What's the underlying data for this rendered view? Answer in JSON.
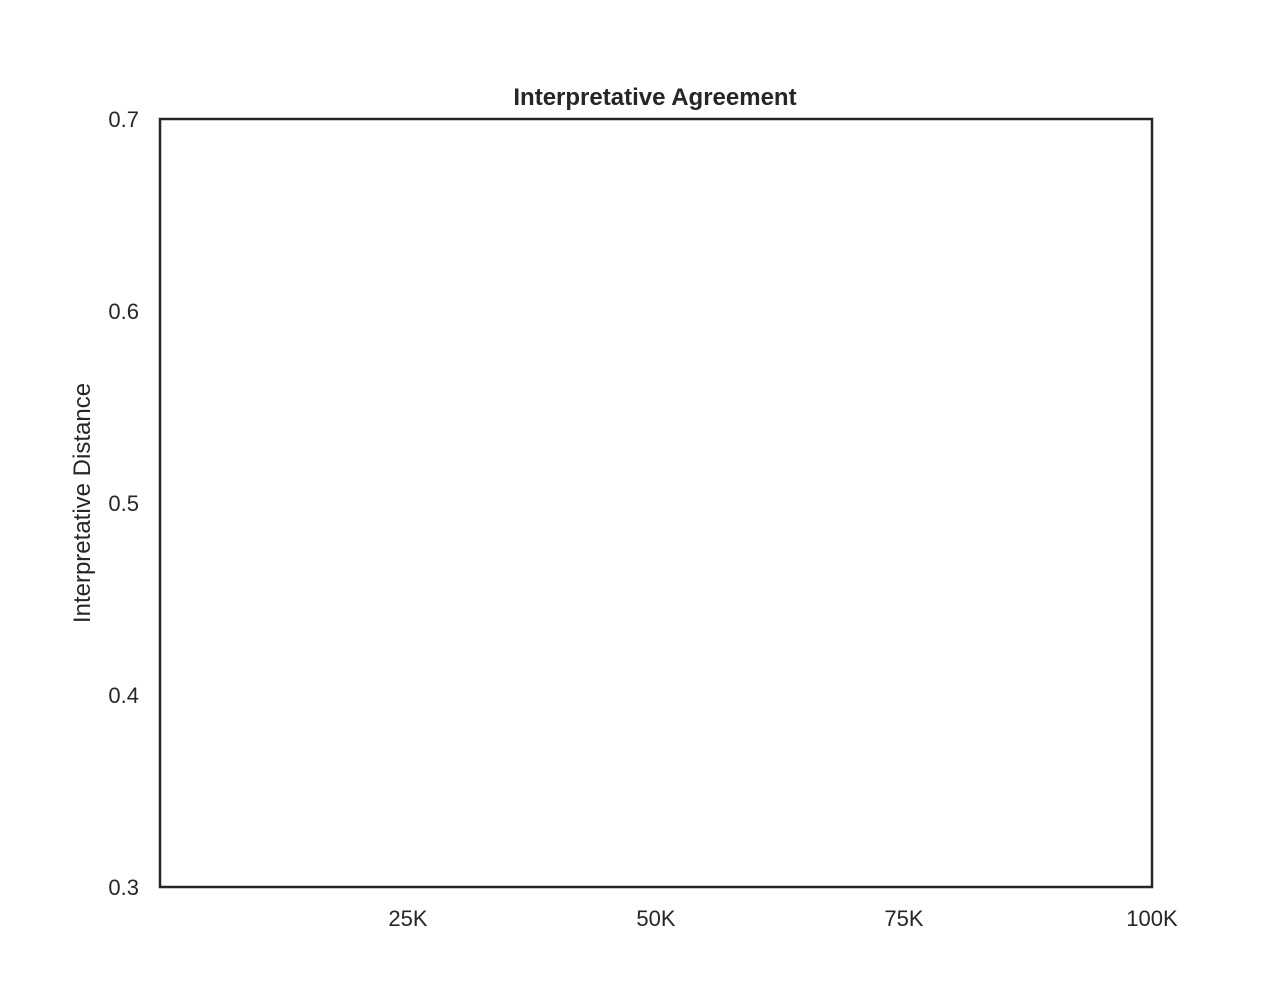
{
  "chart_data": {
    "type": "line",
    "title": "Interpretative Agreement",
    "xlabel": "",
    "ylabel": "Interpretative Distance",
    "xlim": [
      0,
      100000
    ],
    "ylim": [
      0.3,
      0.7
    ],
    "x_ticks": [
      {
        "value": 25000,
        "label": "25K"
      },
      {
        "value": 50000,
        "label": "50K"
      },
      {
        "value": 75000,
        "label": "75K"
      },
      {
        "value": 100000,
        "label": "100K"
      }
    ],
    "y_ticks": [
      {
        "value": 0.3,
        "label": "0.3"
      },
      {
        "value": 0.4,
        "label": "0.4"
      },
      {
        "value": 0.5,
        "label": "0.5"
      },
      {
        "value": 0.6,
        "label": "0.6"
      },
      {
        "value": 0.7,
        "label": "0.7"
      }
    ],
    "grid": false,
    "series": []
  }
}
